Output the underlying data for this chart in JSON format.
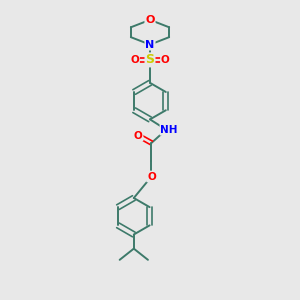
{
  "background_color": "#e8e8e8",
  "bond_color": "#3d7a6a",
  "atom_colors": {
    "O": "#ff0000",
    "N": "#0000ff",
    "S": "#cccc00",
    "C": "#3d7a6a",
    "H": "#8a9a95"
  },
  "figsize": [
    3.0,
    3.0
  ],
  "dpi": 100,
  "xlim": [
    0,
    10
  ],
  "ylim": [
    0,
    10
  ]
}
